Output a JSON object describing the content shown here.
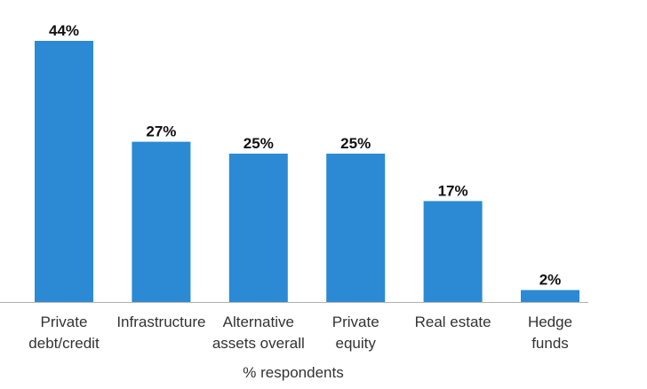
{
  "chart_data": {
    "type": "bar",
    "categories": [
      [
        "Private",
        "debt/credit"
      ],
      [
        "Infrastructure"
      ],
      [
        "Alternative",
        "assets overall"
      ],
      [
        "Private",
        "equity"
      ],
      [
        "Real estate"
      ],
      [
        "Hedge",
        "funds"
      ]
    ],
    "values": [
      44,
      27,
      25,
      25,
      17,
      2
    ],
    "value_labels": [
      "44%",
      "27%",
      "25%",
      "25%",
      "17%",
      "2%"
    ],
    "xlabel": "% respondents",
    "ylabel": "",
    "ylim": [
      0,
      44
    ],
    "grid": false,
    "bar_color": "#2b8ad3",
    "axis_color": "#b0b0b0"
  }
}
